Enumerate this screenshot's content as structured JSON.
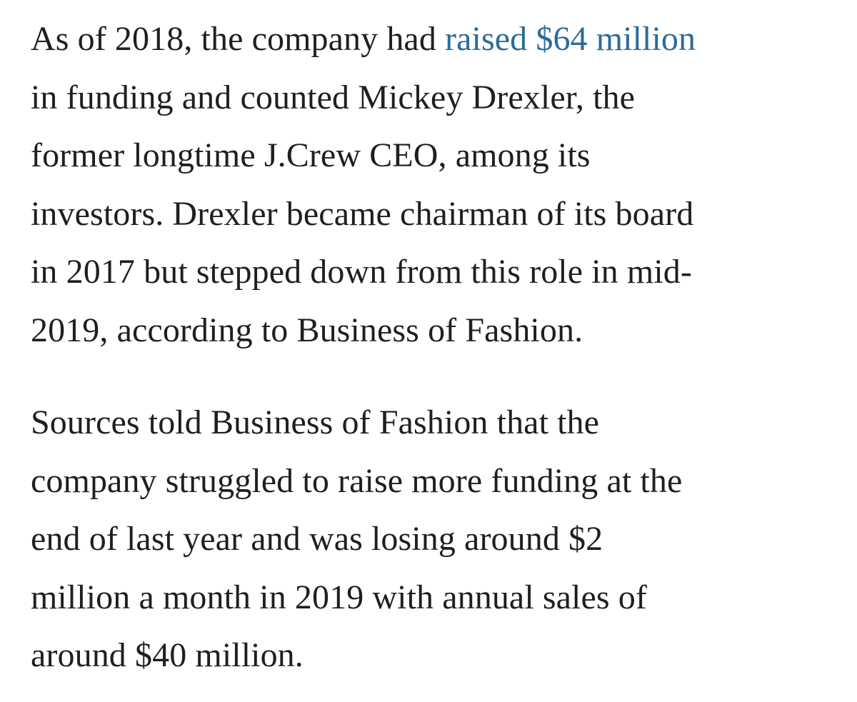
{
  "article": {
    "paragraphs": [
      {
        "lines": [
          {
            "before": "As of 2018, the company had ",
            "link": "raised $64 million"
          },
          {
            "text": "in funding and counted Mickey Drexler, the"
          },
          {
            "text": "former longtime J.Crew CEO, among its"
          },
          {
            "text": "investors. Drexler became chairman of its board"
          },
          {
            "text": "in 2017 but stepped down from this role in mid-"
          },
          {
            "text": "2019, according to Business of Fashion."
          }
        ]
      },
      {
        "lines": [
          {
            "text": "Sources told Business of Fashion that the"
          },
          {
            "text": "company struggled to raise more funding at the"
          },
          {
            "text": "end of last year and was losing around $2"
          },
          {
            "text": "million a month in 2019 with annual sales of"
          },
          {
            "text": "around $40 million."
          }
        ]
      }
    ]
  },
  "colors": {
    "text": "#1f1f1f",
    "link": "#2b6b99",
    "background": "#ffffff"
  }
}
